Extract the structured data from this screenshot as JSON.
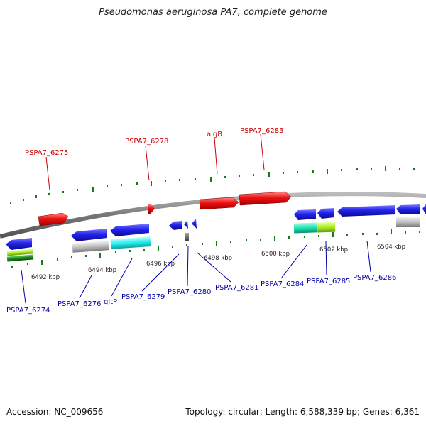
{
  "title": "Pseudomonas aeruginosa PA7, complete genome",
  "footer": {
    "accession": "Accession: NC_009656",
    "summary": "Topology: circular; Length: 6,588,339 bp; Genes: 6,361"
  },
  "colors": {
    "backbone": "#888888",
    "tick": "#1a7a1a",
    "forward_gene": "#ee1111",
    "reverse_gene": "#1a1add",
    "forward_label": "#cc0000",
    "reverse_label": "#0000aa"
  },
  "ticks": [
    "6492 kbp",
    "6494 kbp",
    "6496 kbp",
    "6498 kbp",
    "6500 kbp",
    "6502 kbp",
    "6504 kbp"
  ],
  "forward_labels": [
    "PSPA7_6275",
    "PSPA7_6278",
    "algB",
    "PSPA7_6283"
  ],
  "reverse_labels": [
    "PSPA7_6274",
    "PSPA7_6276",
    "gltP",
    "PSPA7_6279",
    "PSPA7_6280",
    "PSPA7_6281",
    "PSPA7_6284",
    "PSPA7_6285",
    "PSPA7_6286"
  ]
}
